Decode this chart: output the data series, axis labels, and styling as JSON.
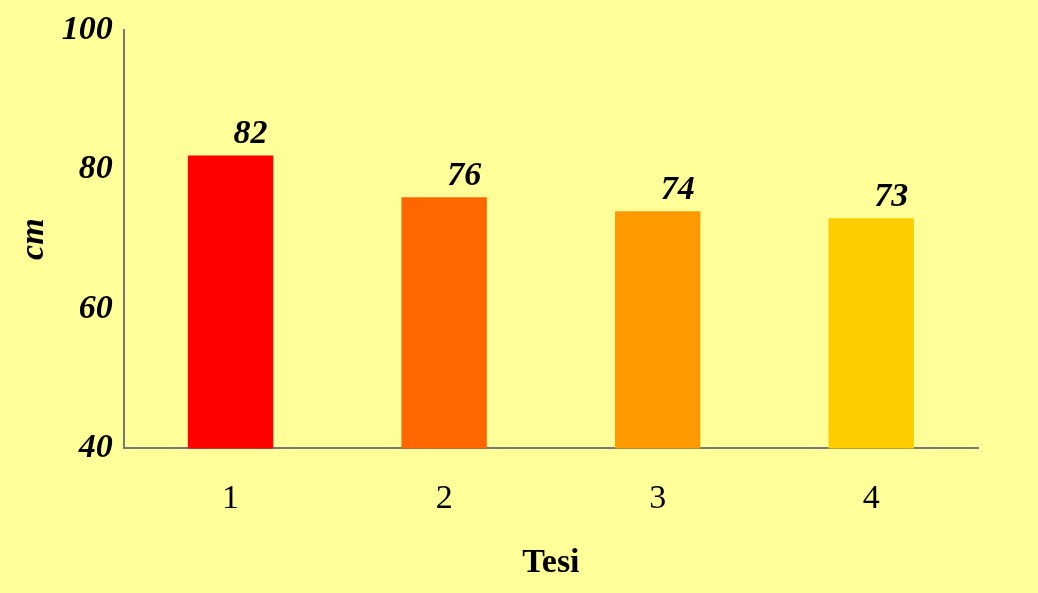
{
  "chart_data": {
    "type": "bar",
    "xlabel": "Tesi",
    "ylabel": "cm",
    "categories": [
      "1",
      "2",
      "3",
      "4"
    ],
    "values": [
      82,
      76,
      74,
      73
    ],
    "colors": [
      "#ff0000",
      "#ff6600",
      "#ff9900",
      "#ffcc00"
    ],
    "ylim": [
      40,
      100
    ],
    "yticks": [
      40,
      60,
      80,
      100
    ],
    "grid": false,
    "legend": false,
    "data_labels": true
  }
}
